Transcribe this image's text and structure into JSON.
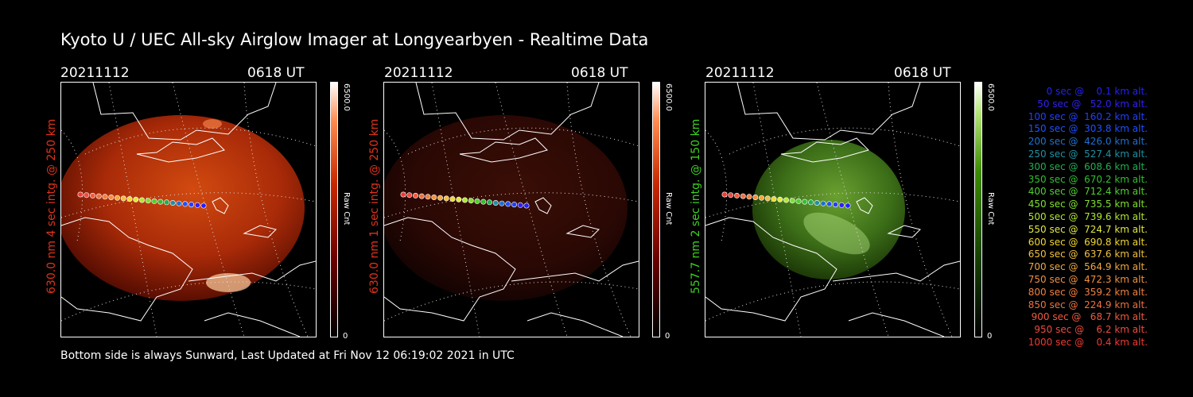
{
  "title": "Kyoto U / UEC All-sky Airglow Imager at Longyearbyen - Realtime Data",
  "panels": [
    {
      "date": "20211112",
      "time": "0618 UT",
      "label": "630.0 nm 4 sec intg. @ 250 km",
      "label_color": "#e0321a",
      "cbar_max": "6500.0",
      "cbar_min": "0",
      "cbar_unit": "Raw Cnt",
      "colormap": "red"
    },
    {
      "date": "20211112",
      "time": "0618 UT",
      "label": "630.0 nm 1 sec intg. @ 250 km",
      "label_color": "#e0321a",
      "cbar_max": "6500.0",
      "cbar_min": "0",
      "cbar_unit": "Raw Cnt",
      "colormap": "red-dim"
    },
    {
      "date": "20211112",
      "time": "0618 UT",
      "label": "557.7 nm 2 sec intg. @ 150 km",
      "label_color": "#3cd21e",
      "cbar_max": "6500.0",
      "cbar_min": "0",
      "cbar_unit": "Raw Cnt",
      "colormap": "green"
    }
  ],
  "footer": "Bottom side is always Sunward, Last Updated at Fri Nov 12 06:19:02 2021 in UTC",
  "legend": [
    {
      "text": "   0 sec @    0.1 km alt.",
      "color": "#2020ff"
    },
    {
      "text": "  50 sec @   52.0 km alt.",
      "color": "#3020f0"
    },
    {
      "text": " 100 sec @  160.2 km alt.",
      "color": "#2040ff"
    },
    {
      "text": " 150 sec @  303.8 km alt.",
      "color": "#2050ff"
    },
    {
      "text": " 200 sec @  426.0 km alt.",
      "color": "#2070d0"
    },
    {
      "text": " 250 sec @  527.4 km alt.",
      "color": "#2090a0"
    },
    {
      "text": " 300 sec @  608.6 km alt.",
      "color": "#20b050"
    },
    {
      "text": " 350 sec @  670.2 km alt.",
      "color": "#30c030"
    },
    {
      "text": " 400 sec @  712.4 km alt.",
      "color": "#50d030"
    },
    {
      "text": " 450 sec @  735.5 km alt.",
      "color": "#80e030"
    },
    {
      "text": " 500 sec @  739.6 km alt.",
      "color": "#b0e830"
    },
    {
      "text": " 550 sec @  724.7 km alt.",
      "color": "#e0e840"
    },
    {
      "text": " 600 sec @  690.8 km alt.",
      "color": "#f0d830"
    },
    {
      "text": " 650 sec @  637.6 km alt.",
      "color": "#f0c040"
    },
    {
      "text": " 700 sec @  564.9 km alt.",
      "color": "#f0a840"
    },
    {
      "text": " 750 sec @  472.3 km alt.",
      "color": "#f09040"
    },
    {
      "text": " 800 sec @  359.2 km alt.",
      "color": "#f08040"
    },
    {
      "text": " 850 sec @  224.9 km alt.",
      "color": "#f07040"
    },
    {
      "text": " 900 sec @   68.7 km alt.",
      "color": "#f05a40"
    },
    {
      "text": " 950 sec @    6.2 km alt.",
      "color": "#f04a40"
    },
    {
      "text": "1000 sec @    0.4 km alt.",
      "color": "#f03a30"
    }
  ]
}
